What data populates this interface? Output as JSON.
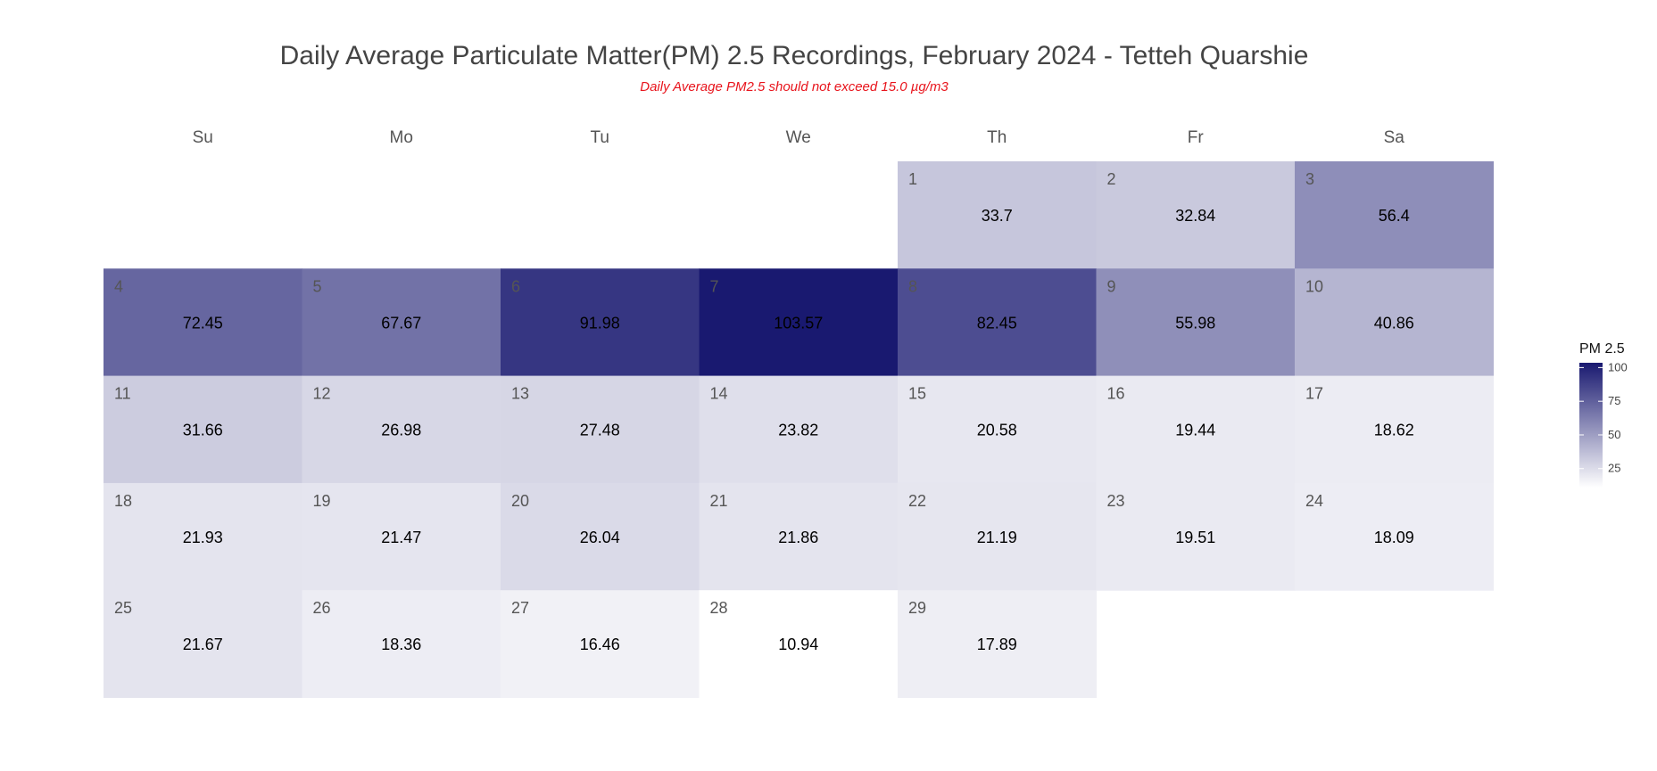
{
  "title": "Daily Average Particulate Matter(PM) 2.5 Recordings, February 2024 - Tetteh Quarshie",
  "subtitle": "Daily Average PM2.5 should not exceed 15.0 µg/m3",
  "colors": {
    "subtitle": "#e8141c",
    "scale_low": "#ffffff",
    "scale_high": "#191970",
    "title": "#444444"
  },
  "legend": {
    "title": "PM 2.5",
    "ticks": [
      25,
      50,
      75,
      100
    ],
    "tick_labels": [
      "25",
      "50",
      "75",
      "100"
    ],
    "range": [
      10.94,
      103.57
    ],
    "placement": "right"
  },
  "chart_data": {
    "type": "heatmap",
    "layout": "calendar",
    "month": "February 2024",
    "weekdays": [
      "Su",
      "Mo",
      "Tu",
      "We",
      "Th",
      "Fr",
      "Sa"
    ],
    "first_weekday_index": 4,
    "days": [
      1,
      2,
      3,
      4,
      5,
      6,
      7,
      8,
      9,
      10,
      11,
      12,
      13,
      14,
      15,
      16,
      17,
      18,
      19,
      20,
      21,
      22,
      23,
      24,
      25,
      26,
      27,
      28,
      29
    ],
    "values": [
      33.7,
      32.84,
      56.4,
      72.45,
      67.67,
      91.98,
      103.57,
      82.45,
      55.98,
      40.86,
      31.66,
      26.98,
      27.48,
      23.82,
      20.58,
      19.44,
      18.62,
      21.93,
      21.47,
      26.04,
      21.86,
      21.19,
      19.51,
      18.09,
      21.67,
      18.36,
      16.46,
      10.94,
      17.89
    ],
    "value_labels": [
      "33.7",
      "32.84",
      "56.4",
      "72.45",
      "67.67",
      "91.98",
      "103.57",
      "82.45",
      "55.98",
      "40.86",
      "31.66",
      "26.98",
      "27.48",
      "23.82",
      "20.58",
      "19.44",
      "18.62",
      "21.93",
      "21.47",
      "26.04",
      "21.86",
      "21.19",
      "19.51",
      "18.09",
      "21.67",
      "18.36",
      "16.46",
      "10.94",
      "17.89"
    ],
    "legend_title": "PM 2.5"
  }
}
